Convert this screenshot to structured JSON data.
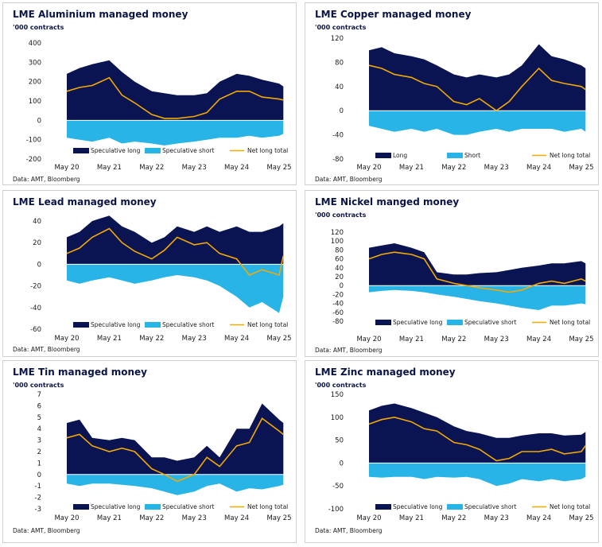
{
  "colors": {
    "long": "#0b1452",
    "short": "#29b4e8",
    "net": "#f2a900"
  },
  "chart_data": [
    {
      "type": "area",
      "title": "LME Aluminium managed money",
      "ylabel": "'000 contracts",
      "ylim": [
        -200,
        400
      ],
      "yticks": [
        -200,
        -100,
        0,
        100,
        200,
        300,
        400
      ],
      "xticks": [
        "May 20",
        "May 21",
        "May 22",
        "May 23",
        "May 24",
        "May 25"
      ],
      "x": [
        2020.4,
        2020.7,
        2021.0,
        2021.4,
        2021.7,
        2022.0,
        2022.4,
        2022.7,
        2023.0,
        2023.4,
        2023.7,
        2024.0,
        2024.4,
        2024.7,
        2025.0,
        2025.4,
        2025.5
      ],
      "series": [
        {
          "name": "Speculative long",
          "values": [
            240,
            270,
            290,
            310,
            250,
            200,
            150,
            140,
            130,
            130,
            140,
            200,
            240,
            230,
            210,
            190,
            175
          ]
        },
        {
          "name": "Speculative short",
          "values": [
            -90,
            -100,
            -110,
            -90,
            -120,
            -110,
            -120,
            -130,
            -120,
            -110,
            -100,
            -90,
            -90,
            -80,
            -90,
            -80,
            -70
          ]
        },
        {
          "name": "Net long total",
          "values": [
            150,
            170,
            180,
            220,
            130,
            90,
            30,
            10,
            10,
            20,
            40,
            110,
            150,
            150,
            120,
            110,
            105
          ]
        }
      ],
      "legend": "bottom",
      "source": "Data: AMT, Bloomberg"
    },
    {
      "type": "area",
      "title": "LME Copper managed money",
      "ylabel": "'000 contracts",
      "ylim": [
        -80,
        120
      ],
      "yticks": [
        -80,
        -40,
        0,
        40,
        80,
        120
      ],
      "xticks": [
        "May 20",
        "May 21",
        "May 22",
        "May 23",
        "May 24",
        "May 25"
      ],
      "x": [
        2020.4,
        2020.7,
        2021.0,
        2021.4,
        2021.7,
        2022.0,
        2022.4,
        2022.7,
        2023.0,
        2023.4,
        2023.7,
        2024.0,
        2024.4,
        2024.7,
        2025.0,
        2025.4,
        2025.5
      ],
      "series": [
        {
          "name": "Long",
          "values": [
            100,
            105,
            95,
            90,
            85,
            75,
            60,
            55,
            60,
            55,
            60,
            75,
            110,
            90,
            85,
            75,
            70
          ]
        },
        {
          "name": "Short",
          "values": [
            -25,
            -30,
            -35,
            -30,
            -35,
            -30,
            -40,
            -40,
            -35,
            -30,
            -35,
            -30,
            -30,
            -30,
            -35,
            -30,
            -35
          ]
        },
        {
          "name": "Net long total",
          "values": [
            75,
            70,
            60,
            55,
            45,
            40,
            15,
            10,
            20,
            0,
            15,
            40,
            70,
            50,
            45,
            40,
            35
          ]
        }
      ],
      "legend": "bottom",
      "source": "Data: AMT, Bloomberg"
    },
    {
      "type": "area",
      "title": "LME Lead managed money",
      "ylabel": "",
      "ylim": [
        -60,
        40
      ],
      "yticks": [
        -60,
        -40,
        -20,
        0,
        20,
        40
      ],
      "xticks": [
        "May 20",
        "May 21",
        "May 22",
        "May 23",
        "May 24",
        "May 25"
      ],
      "x": [
        2020.4,
        2020.7,
        2021.0,
        2021.4,
        2021.7,
        2022.0,
        2022.4,
        2022.7,
        2023.0,
        2023.4,
        2023.7,
        2024.0,
        2024.4,
        2024.7,
        2025.0,
        2025.4,
        2025.5
      ],
      "series": [
        {
          "name": "Speculative long",
          "values": [
            25,
            30,
            40,
            45,
            35,
            30,
            20,
            25,
            35,
            30,
            35,
            30,
            35,
            30,
            30,
            35,
            38
          ]
        },
        {
          "name": "Speculative short",
          "values": [
            -15,
            -18,
            -15,
            -12,
            -15,
            -18,
            -15,
            -12,
            -10,
            -12,
            -15,
            -20,
            -30,
            -40,
            -35,
            -45,
            -30
          ]
        },
        {
          "name": "Net long total",
          "values": [
            10,
            15,
            25,
            33,
            20,
            12,
            5,
            13,
            25,
            18,
            20,
            10,
            5,
            -10,
            -5,
            -10,
            8
          ]
        }
      ],
      "legend": "bottom",
      "source": "Data: AMT, Bloomberg"
    },
    {
      "type": "area",
      "title": "LME Nickel manged money",
      "ylabel": "'000 contracts",
      "ylim": [
        -80,
        120
      ],
      "yticks": [
        -80,
        -60,
        -40,
        -20,
        0,
        20,
        40,
        60,
        80,
        100,
        120
      ],
      "xticks": [
        "May 20",
        "May 21",
        "May 22",
        "May 23",
        "May 24",
        "May 25"
      ],
      "x": [
        2020.4,
        2020.7,
        2021.0,
        2021.4,
        2021.7,
        2022.0,
        2022.4,
        2022.7,
        2023.0,
        2023.4,
        2023.7,
        2024.0,
        2024.4,
        2024.7,
        2025.0,
        2025.4,
        2025.5
      ],
      "series": [
        {
          "name": "Speculative long",
          "values": [
            85,
            90,
            95,
            85,
            75,
            30,
            25,
            25,
            28,
            30,
            35,
            40,
            45,
            50,
            50,
            55,
            50
          ]
        },
        {
          "name": "Speculative short",
          "values": [
            -15,
            -12,
            -10,
            -12,
            -15,
            -20,
            -25,
            -30,
            -35,
            -40,
            -45,
            -50,
            -55,
            -45,
            -45,
            -40,
            -42
          ]
        },
        {
          "name": "Net long total",
          "values": [
            60,
            70,
            75,
            70,
            60,
            15,
            5,
            0,
            -5,
            -10,
            -15,
            -10,
            5,
            10,
            5,
            15,
            10
          ]
        }
      ],
      "legend": "bottom",
      "source": "Data: AMT, Bloomberg"
    },
    {
      "type": "area",
      "title": "LME Tin managed money",
      "ylabel": "'000 contracts",
      "ylim": [
        -3,
        7
      ],
      "yticks": [
        -3,
        -2,
        -1,
        0,
        1,
        2,
        3,
        4,
        5,
        6,
        7
      ],
      "xticks": [
        "May 20",
        "May 21",
        "May 22",
        "May 23",
        "May 24",
        "May 25"
      ],
      "x": [
        2020.4,
        2020.7,
        2021.0,
        2021.4,
        2021.7,
        2022.0,
        2022.4,
        2022.7,
        2023.0,
        2023.4,
        2023.7,
        2024.0,
        2024.4,
        2024.7,
        2025.0,
        2025.4,
        2025.5
      ],
      "series": [
        {
          "name": "Speculative long",
          "values": [
            4.5,
            4.8,
            3.2,
            3.0,
            3.2,
            3.0,
            1.5,
            1.5,
            1.2,
            1.5,
            2.5,
            1.5,
            4.0,
            4.0,
            6.2,
            4.8,
            4.5
          ]
        },
        {
          "name": "Speculative short",
          "values": [
            -0.8,
            -1.0,
            -0.8,
            -0.8,
            -0.9,
            -1.0,
            -1.2,
            -1.5,
            -1.8,
            -1.5,
            -1.0,
            -0.8,
            -1.5,
            -1.2,
            -1.3,
            -1.0,
            -0.9
          ]
        },
        {
          "name": "Net long total",
          "values": [
            3.2,
            3.5,
            2.5,
            2.0,
            2.3,
            2.0,
            0.5,
            0.0,
            -0.6,
            0.0,
            1.5,
            0.7,
            2.5,
            2.8,
            4.9,
            3.8,
            3.5
          ]
        }
      ],
      "legend": "bottom",
      "source": "Data: AMT, Bloomberg"
    },
    {
      "type": "area",
      "title": "LME Zinc managed money",
      "ylabel": "'000 contracts",
      "ylim": [
        -100,
        150
      ],
      "yticks": [
        -100,
        -50,
        0,
        50,
        100,
        150
      ],
      "xticks": [
        "May 20",
        "May 21",
        "May 22",
        "May 23",
        "May 24",
        "May 25"
      ],
      "x": [
        2020.4,
        2020.7,
        2021.0,
        2021.4,
        2021.7,
        2022.0,
        2022.4,
        2022.7,
        2023.0,
        2023.4,
        2023.7,
        2024.0,
        2024.4,
        2024.7,
        2025.0,
        2025.4,
        2025.5
      ],
      "series": [
        {
          "name": "Speculative long",
          "values": [
            115,
            125,
            130,
            120,
            110,
            100,
            80,
            70,
            65,
            55,
            55,
            60,
            65,
            65,
            60,
            62,
            68
          ]
        },
        {
          "name": "Speculative short",
          "values": [
            -30,
            -32,
            -30,
            -30,
            -35,
            -30,
            -32,
            -30,
            -35,
            -50,
            -45,
            -35,
            -40,
            -35,
            -40,
            -35,
            -30
          ]
        },
        {
          "name": "Net long total",
          "values": [
            85,
            95,
            100,
            90,
            75,
            70,
            45,
            40,
            30,
            5,
            10,
            25,
            25,
            30,
            20,
            25,
            38
          ]
        }
      ],
      "legend": "bottom",
      "source": "Data: AMT, Bloomberg"
    }
  ]
}
